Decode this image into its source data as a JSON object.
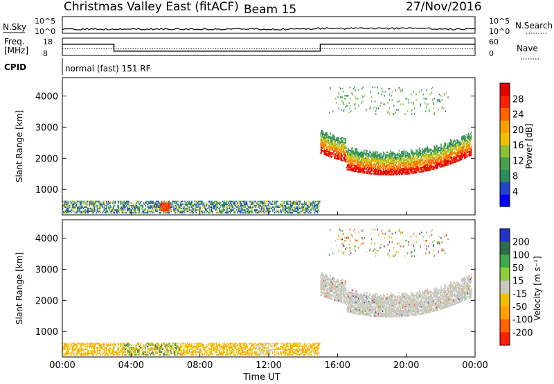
{
  "header": {
    "title": "Christmas Valley East (fitACF)",
    "beam": "Beam 15",
    "date": "27/Nov/2016"
  },
  "status_panels": {
    "nsky_label": "N.Sky",
    "nsearch_label": "N.Search",
    "noise_ticks": [
      "10^5",
      "10^0"
    ],
    "freq_label_1": "Freq.",
    "freq_label_2": "[MHz]",
    "freq_ticks": [
      "18",
      "8"
    ],
    "nave_label": "Nave",
    "nave_ticks": [
      "60",
      "0"
    ],
    "cpid_label": "CPID",
    "cpid_text": "normal (fast) 151 RF",
    "freq_steps": [
      {
        "from": "00:00",
        "to": "03:00",
        "value_mhz": 14.5
      },
      {
        "from": "03:00",
        "to": "15:00",
        "value_mhz": 10.5
      },
      {
        "from": "15:00",
        "to": "24:00",
        "value_mhz": 14.5
      }
    ]
  },
  "chart_data": [
    {
      "type": "heatmap",
      "panel": "power",
      "ylabel": "Slant Range [km]",
      "xlabel": "",
      "x_ticks": [
        "00:00",
        "04:00",
        "08:00",
        "12:00",
        "16:00",
        "20:00",
        "00:00"
      ],
      "y_ticks": [
        1000,
        2000,
        3000,
        4000
      ],
      "ylim": [
        180,
        4590
      ],
      "xlim_hours": [
        0,
        24
      ],
      "colorbar_label": "Power [dB]",
      "colorbar_ticks": [
        4,
        8,
        12,
        16,
        20,
        24,
        28
      ],
      "colorbar_colors": [
        "#0000ff",
        "#2244cc",
        "#2a8b5e",
        "#49a04a",
        "#8cbf3a",
        "#f0c000",
        "#ffa000",
        "#ff6000",
        "#ff2000",
        "#e00000"
      ],
      "regions": [
        {
          "t0": 0.0,
          "t1": 15.0,
          "r0": 230,
          "r1": 600,
          "class": "ground-scatter",
          "level": "low-mid"
        },
        {
          "t0": 5.6,
          "t1": 6.3,
          "r0": 280,
          "r1": 560,
          "class": "peak",
          "level": 28
        },
        {
          "t0": 15.0,
          "t1": 23.8,
          "r0": 1350,
          "r1": 2800,
          "class": "main-echo",
          "level": "high"
        },
        {
          "t0": 15.5,
          "t1": 22.5,
          "r0": 3500,
          "r1": 4300,
          "class": "far-echo",
          "level": "low"
        }
      ]
    },
    {
      "type": "heatmap",
      "panel": "velocity",
      "ylabel": "Slant Range [km]",
      "xlabel": "Time UT",
      "x_ticks": [
        "00:00",
        "04:00",
        "08:00",
        "12:00",
        "16:00",
        "20:00",
        "00:00"
      ],
      "y_ticks": [
        1000,
        2000,
        3000,
        4000
      ],
      "ylim": [
        180,
        4590
      ],
      "xlim_hours": [
        0,
        24
      ],
      "colorbar_label": "Velocity [m s⁻¹]",
      "colorbar_ticks": [
        200,
        100,
        50,
        15,
        -15,
        -50,
        -100,
        -200
      ],
      "colorbar_colors": [
        "#2233cc",
        "#2f6b46",
        "#3fa84a",
        "#8ccf3a",
        "#c8c8c0",
        "#f0c000",
        "#ffa000",
        "#ff6000",
        "#ff2000"
      ],
      "regions": [
        {
          "t0": 0.0,
          "t1": 15.0,
          "r0": 230,
          "r1": 600,
          "class": "ground-scatter",
          "velocity": "-50 to -15"
        },
        {
          "t0": 3.5,
          "t1": 6.8,
          "r0": 250,
          "r1": 620,
          "class": "green-patch",
          "velocity": "50 to 100"
        },
        {
          "t0": 15.0,
          "t1": 23.8,
          "r0": 1350,
          "r1": 2800,
          "class": "grey-band",
          "velocity": "-15 to 15"
        }
      ]
    }
  ]
}
